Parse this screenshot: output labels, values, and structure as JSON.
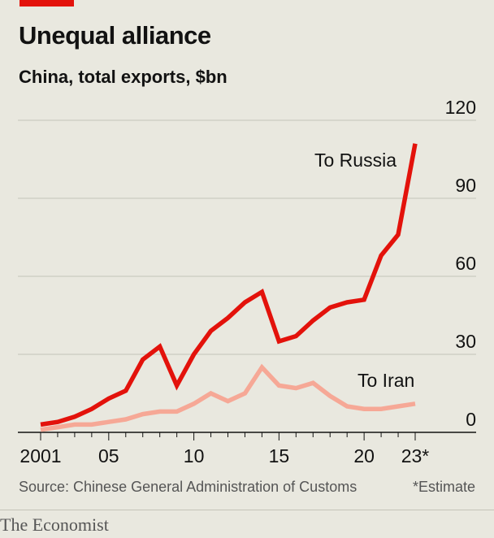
{
  "header": {
    "title": "Unequal alliance",
    "subtitle": "China, total exports, $bn"
  },
  "footer": {
    "source": "Source: Chinese General Administration of Customs",
    "footnote": "*Estimate",
    "brand": "The Economist"
  },
  "colors": {
    "russia": "#e3120b",
    "iran": "#f6a896",
    "grid": "#c4c3b8",
    "axis": "#121212",
    "background": "#e9e8df"
  },
  "chart_data": {
    "type": "line",
    "x": [
      2001,
      2002,
      2003,
      2004,
      2005,
      2006,
      2007,
      2008,
      2009,
      2010,
      2011,
      2012,
      2013,
      2014,
      2015,
      2016,
      2017,
      2018,
      2019,
      2020,
      2021,
      2022,
      2023
    ],
    "x_tick_values": [
      2001,
      2005,
      2010,
      2015,
      2020,
      2023
    ],
    "x_tick_labels": [
      "2001",
      "05",
      "10",
      "15",
      "20",
      "23*"
    ],
    "ylim": [
      0,
      120
    ],
    "y_ticks": [
      0,
      30,
      60,
      90,
      120
    ],
    "grid": true,
    "series": [
      {
        "name": "To Russia",
        "color": "#e3120b",
        "values": [
          3,
          4,
          6,
          9,
          13,
          16,
          28,
          33,
          18,
          30,
          39,
          44,
          50,
          54,
          35,
          37,
          43,
          48,
          50,
          51,
          68,
          76,
          111
        ]
      },
      {
        "name": "To Iran",
        "color": "#f6a896",
        "values": [
          1,
          2,
          3,
          3,
          4,
          5,
          7,
          8,
          8,
          11,
          15,
          12,
          15,
          25,
          18,
          17,
          19,
          14,
          10,
          9,
          9,
          10,
          11
        ]
      }
    ]
  }
}
